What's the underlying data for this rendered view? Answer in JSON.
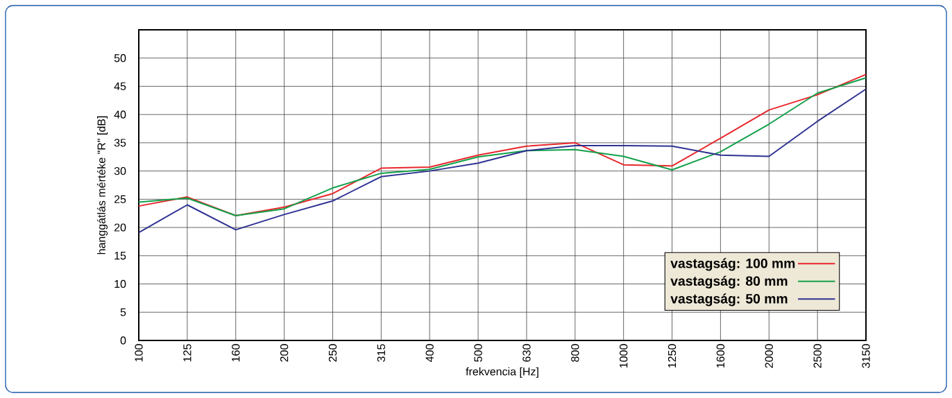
{
  "chart_data": {
    "type": "line",
    "xlabel": "frekvencia [Hz]",
    "ylabel": "hanggátlás mértéke \"R\" [dB]",
    "categories": [
      "100",
      "125",
      "160",
      "200",
      "250",
      "315",
      "400",
      "500",
      "630",
      "800",
      "1000",
      "1250",
      "1600",
      "2000",
      "2500",
      "3150"
    ],
    "series": [
      {
        "name": "vastagság: 100 mm",
        "color": "#e8262b",
        "values": [
          23.8,
          25.4,
          22.1,
          23.6,
          26.0,
          30.5,
          30.7,
          32.8,
          34.4,
          35.0,
          31.1,
          30.9,
          35.8,
          40.8,
          43.5,
          47.1
        ]
      },
      {
        "name": "vastagság: 80 mm",
        "color": "#12a04a",
        "values": [
          24.5,
          25.2,
          22.1,
          23.3,
          27.0,
          29.6,
          30.3,
          32.5,
          33.6,
          33.8,
          32.6,
          30.2,
          33.4,
          38.3,
          43.8,
          46.5
        ]
      },
      {
        "name": "vastagság: 50 mm",
        "color": "#2e3192",
        "values": [
          19.1,
          24.0,
          19.6,
          22.3,
          24.7,
          29.0,
          30.0,
          31.4,
          33.6,
          34.5,
          34.5,
          34.4,
          32.8,
          32.6,
          38.8,
          44.5
        ]
      }
    ],
    "ylim": [
      0,
      55
    ],
    "yticks": [
      0,
      5,
      10,
      15,
      20,
      25,
      30,
      35,
      40,
      45,
      50
    ],
    "grid": true,
    "legend": "bottom right",
    "marker": "none",
    "line_style": "solid"
  }
}
